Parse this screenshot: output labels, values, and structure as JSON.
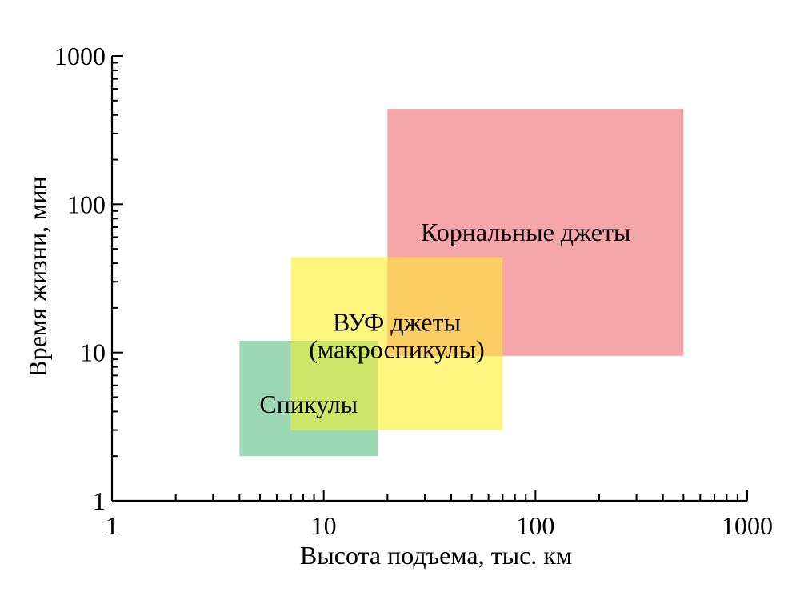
{
  "chart_data": {
    "type": "area",
    "xscale": "log",
    "yscale": "log",
    "xlim": [
      1,
      1000
    ],
    "ylim": [
      1,
      1000
    ],
    "xlabel": "Высота подъема, тыс. км",
    "ylabel": "Время жизни, мин",
    "xticks": [
      1,
      10,
      100,
      1000
    ],
    "xtick_labels": [
      "1",
      "10",
      "100",
      "1000"
    ],
    "yticks": [
      1,
      10,
      100,
      1000
    ],
    "ytick_labels": [
      "1",
      "10",
      "100",
      "1000"
    ],
    "grid": false,
    "regions": [
      {
        "name": "Спикулы",
        "label_lines": [
          "Спикулы"
        ],
        "x": [
          4,
          18
        ],
        "y": [
          2,
          12
        ],
        "color": "#9dd8b6"
      },
      {
        "name": "ВУФ джеты (макроспикулы)",
        "label_lines": [
          "ВУФ джеты",
          "(макроспикулы)"
        ],
        "x": [
          7,
          70
        ],
        "y": [
          3,
          44
        ],
        "color": "#fdf57e"
      },
      {
        "name": "Корнальные джеты",
        "label_lines": [
          "Корнальные джеты"
        ],
        "x": [
          20,
          500
        ],
        "y": [
          9.5,
          440
        ],
        "color": "#f4a5a8"
      }
    ],
    "overlap_colors": {
      "spicules_vuv": "#cde66a",
      "vuv_coronal": "#fbcd62"
    }
  }
}
